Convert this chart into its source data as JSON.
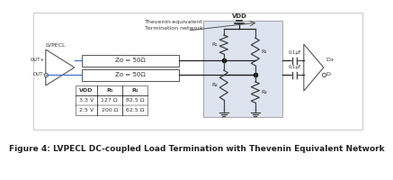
{
  "title": "Figure 4: LVPECL DC-coupled Load Termination with Thevenin Equivalent Network",
  "title_fontsize": 6.5,
  "bg_color": "#ffffff",
  "table_headers": [
    "VDD",
    "R₁",
    "R₂"
  ],
  "table_rows": [
    [
      "3.3 V",
      "127 Ω",
      "82.5 Ω"
    ],
    [
      "2.5 V",
      "200 Ω",
      "62.5 Ω"
    ]
  ],
  "zo_label": "Zo = 50Ω",
  "vdd_label": "VDD",
  "lvpecl_label": "LVPECL",
  "out_plus": "OUT+",
  "out_minus": "OUT-",
  "thevenin_label": "Thevenin-equivalent\nTermination network",
  "cap_label": "0.1μF",
  "d_plus": "D+",
  "d_minus": "D-",
  "r1_label": "R₁",
  "r2_label": "R₂",
  "line_color": "#555555",
  "wire_color_blue": "#4472c4",
  "wire_color_black": "#222222",
  "thev_box_color": "#dde3ef",
  "outer_box_color": "#cccccc"
}
